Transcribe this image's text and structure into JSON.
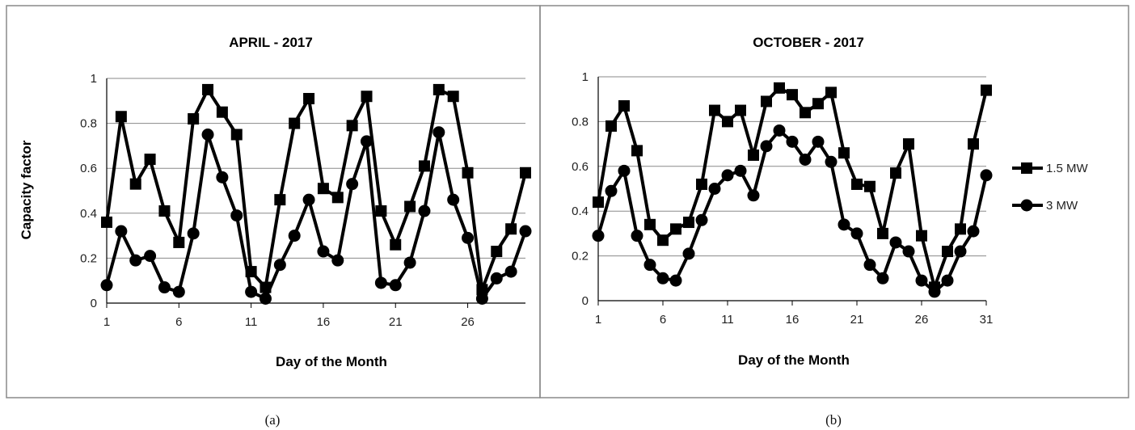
{
  "chart_data": [
    {
      "type": "line",
      "panel": "(a)",
      "title": "APRIL - 2017",
      "xlabel": "Day of the Month",
      "ylabel": "Capacity factor",
      "xlim": [
        1,
        30
      ],
      "ylim": [
        0,
        1
      ],
      "xticks": [
        1,
        6,
        11,
        16,
        21,
        26
      ],
      "xtick_labels": [
        "1",
        "6",
        "11",
        "16",
        "21",
        "26"
      ],
      "yticks": [
        0,
        0.2,
        0.4,
        0.6,
        0.8,
        1
      ],
      "ytick_labels": [
        "0",
        "0.2",
        "0.4",
        "0.6",
        "0.8",
        "1"
      ],
      "grid": "horizontal",
      "x": [
        1,
        2,
        3,
        4,
        5,
        6,
        7,
        8,
        9,
        10,
        11,
        12,
        13,
        14,
        15,
        16,
        17,
        18,
        19,
        20,
        21,
        22,
        23,
        24,
        25,
        26,
        27,
        28,
        29,
        30
      ],
      "series": [
        {
          "name": "1.5 MW",
          "marker": "square",
          "values": [
            0.36,
            0.83,
            0.53,
            0.64,
            0.41,
            0.27,
            0.82,
            0.95,
            0.85,
            0.75,
            0.14,
            0.07,
            0.46,
            0.8,
            0.91,
            0.51,
            0.47,
            0.79,
            0.92,
            0.41,
            0.26,
            0.43,
            0.61,
            0.95,
            0.92,
            0.58,
            0.06,
            0.23,
            0.33,
            0.58
          ]
        },
        {
          "name": "3 MW",
          "marker": "circle",
          "values": [
            0.08,
            0.32,
            0.19,
            0.21,
            0.07,
            0.05,
            0.31,
            0.75,
            0.56,
            0.39,
            0.05,
            0.02,
            0.17,
            0.3,
            0.46,
            0.23,
            0.19,
            0.53,
            0.72,
            0.09,
            0.08,
            0.18,
            0.41,
            0.76,
            0.46,
            0.29,
            0.02,
            0.11,
            0.14,
            0.32
          ]
        }
      ]
    },
    {
      "type": "line",
      "panel": "(b)",
      "title": "OCTOBER - 2017",
      "xlabel": "Day of the Month",
      "ylabel": "",
      "xlim": [
        1,
        31
      ],
      "ylim": [
        0,
        1
      ],
      "xticks": [
        1,
        6,
        11,
        16,
        21,
        26,
        31
      ],
      "xtick_labels": [
        "1",
        "6",
        "11",
        "16",
        "21",
        "26",
        "31"
      ],
      "yticks": [
        0,
        0.2,
        0.4,
        0.6,
        0.8,
        1
      ],
      "ytick_labels": [
        "0",
        "0.2",
        "0.4",
        "0.6",
        "0.8",
        "1"
      ],
      "grid": "horizontal",
      "legend": "right",
      "x": [
        1,
        2,
        3,
        4,
        5,
        6,
        7,
        8,
        9,
        10,
        11,
        12,
        13,
        14,
        15,
        16,
        17,
        18,
        19,
        20,
        21,
        22,
        23,
        24,
        25,
        26,
        27,
        28,
        29,
        30,
        31
      ],
      "series": [
        {
          "name": "1.5 MW",
          "marker": "square",
          "values": [
            0.44,
            0.78,
            0.87,
            0.67,
            0.34,
            0.27,
            0.32,
            0.35,
            0.52,
            0.85,
            0.8,
            0.85,
            0.65,
            0.89,
            0.95,
            0.92,
            0.84,
            0.88,
            0.93,
            0.66,
            0.52,
            0.51,
            0.3,
            0.57,
            0.7,
            0.29,
            0.06,
            0.22,
            0.32,
            0.7,
            0.94
          ]
        },
        {
          "name": "3 MW",
          "marker": "circle",
          "values": [
            0.29,
            0.49,
            0.58,
            0.29,
            0.16,
            0.1,
            0.09,
            0.21,
            0.36,
            0.5,
            0.56,
            0.58,
            0.47,
            0.69,
            0.76,
            0.71,
            0.63,
            0.71,
            0.62,
            0.34,
            0.3,
            0.16,
            0.1,
            0.26,
            0.22,
            0.09,
            0.04,
            0.09,
            0.22,
            0.31,
            0.56
          ]
        }
      ]
    }
  ],
  "captions": {
    "a": "(a)",
    "b": "(b)"
  }
}
